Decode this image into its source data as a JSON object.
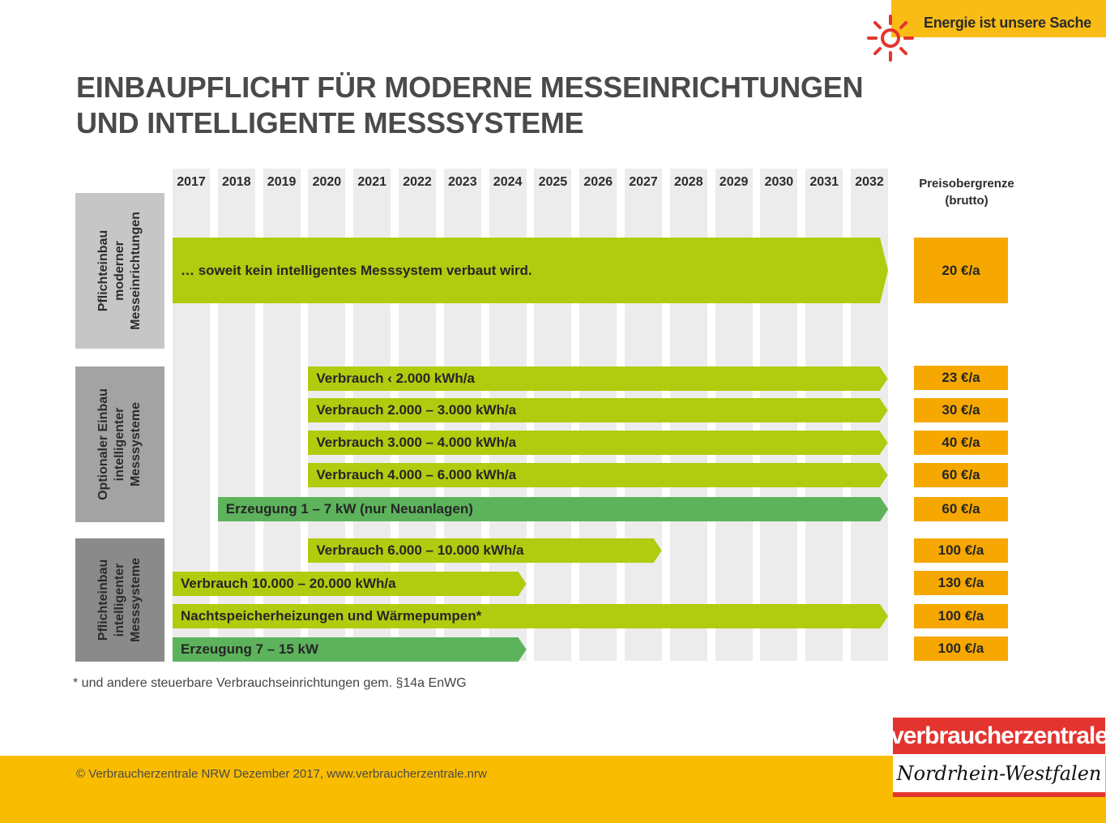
{
  "header": {
    "tagline": "Energie ist unsere Sache",
    "brand_color": "#f9bc15",
    "sun_color": "#e3342f"
  },
  "title_lines": [
    "EINBAUPFLICHT FÜR MODERNE MESSEINRICHTUNGEN",
    "UND INTELLIGENTE MESSSYSTEME"
  ],
  "price_header": [
    "Preisobergrenze",
    "(brutto)"
  ],
  "groups": [
    {
      "label_lines": [
        "Pflichteinbau",
        "moderner",
        "Messeinrichtungen"
      ],
      "color": "#c6c6c6"
    },
    {
      "label_lines": [
        "Optionaler Einbau",
        "intelligenter",
        "Messsysteme"
      ],
      "color": "#a3a3a3"
    },
    {
      "label_lines": [
        "Pflichteinbau",
        "intelligenter",
        "Messsysteme"
      ],
      "color": "#8a8a8a"
    }
  ],
  "chart_data": {
    "type": "table",
    "title": "EINBAUPFLICHT FÜR MODERNE MESSEINRICHTUNGEN UND INTELLIGENTE MESSSYSTEME",
    "years": [
      "2017",
      "2018",
      "2019",
      "2020",
      "2021",
      "2022",
      "2023",
      "2024",
      "2025",
      "2026",
      "2027",
      "2028",
      "2029",
      "2030",
      "2031",
      "2032"
    ],
    "price_column_label": "Preisobergrenze (brutto)",
    "colors": {
      "consumption": "#b1cb0e",
      "generation": "#5db35b",
      "price": "#f6a800",
      "column": "#ececec"
    },
    "rows": [
      {
        "group": 0,
        "label": "… soweit kein intelligentes Messsystem verbaut wird.",
        "start": "2017",
        "end": "2032",
        "kind": "consumption",
        "price": "20 €/a"
      },
      {
        "group": 1,
        "label": "Verbrauch ‹ 2.000 kWh/a",
        "start": "2020",
        "end": "2032",
        "kind": "consumption",
        "price": "23 €/a"
      },
      {
        "group": 1,
        "label": "Verbrauch 2.000 – 3.000 kWh/a",
        "start": "2020",
        "end": "2032",
        "kind": "consumption",
        "price": "30 €/a"
      },
      {
        "group": 1,
        "label": "Verbrauch 3.000 – 4.000 kWh/a",
        "start": "2020",
        "end": "2032",
        "kind": "consumption",
        "price": "40 €/a"
      },
      {
        "group": 1,
        "label": "Verbrauch 4.000 – 6.000 kWh/a",
        "start": "2020",
        "end": "2032",
        "kind": "consumption",
        "price": "60 €/a"
      },
      {
        "group": 1,
        "label": "Erzeugung 1 – 7 kW (nur Neuanlagen)",
        "start": "2018",
        "end": "2032",
        "kind": "generation",
        "price": "60 €/a"
      },
      {
        "group": 2,
        "label": "Verbrauch 6.000 – 10.000 kWh/a",
        "start": "2020",
        "end": "2027",
        "kind": "consumption",
        "price": "100 €/a"
      },
      {
        "group": 2,
        "label": "Verbrauch 10.000 – 20.000 kWh/a",
        "start": "2017",
        "end": "2024",
        "kind": "consumption",
        "price": "130 €/a"
      },
      {
        "group": 2,
        "label": "Nachtspeicherheizungen und Wärmepumpen*",
        "start": "2017",
        "end": "2032",
        "kind": "consumption",
        "price": "100 €/a"
      },
      {
        "group": 2,
        "label": "Erzeugung 7 – 15 kW",
        "start": "2017",
        "end": "2024",
        "kind": "generation",
        "price": "100 €/a"
      }
    ]
  },
  "footnote": "* und andere steuerbare Verbrauchseinrichtungen gem. §14a EnWG",
  "footer": {
    "copyright": "© Verbraucherzentrale NRW Dezember 2017, www.verbraucherzentrale.nrw",
    "logo_top": "verbraucherzentrale",
    "logo_bottom": "Nordrhein-Westfalen"
  }
}
